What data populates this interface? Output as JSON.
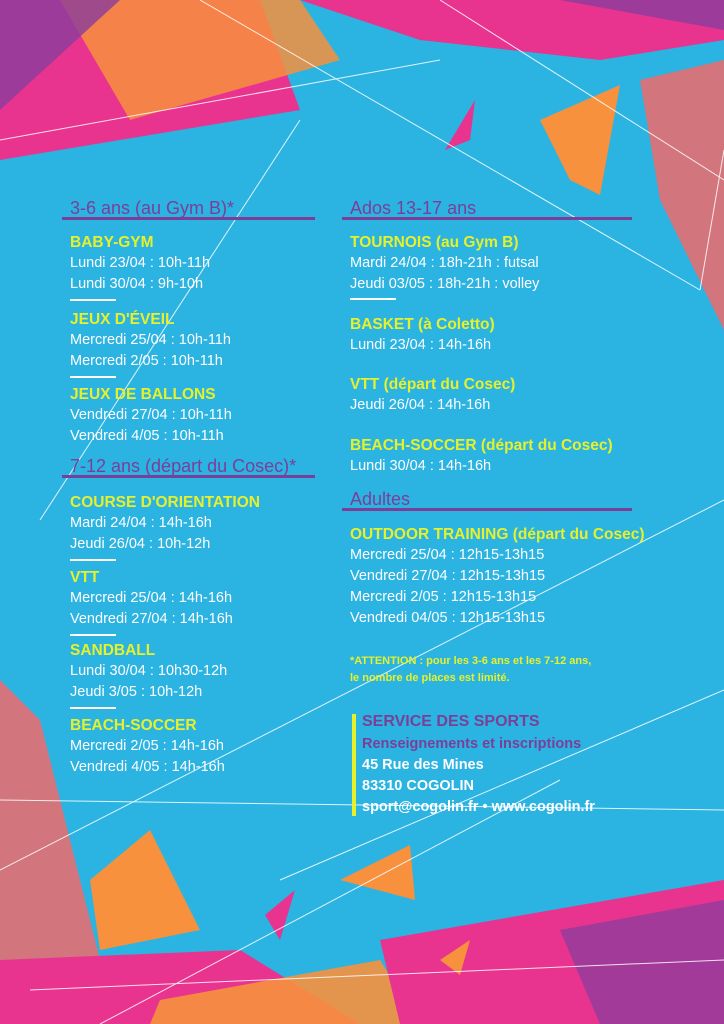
{
  "colors": {
    "background": "#2bb3e2",
    "heading": "#7b3f98",
    "activity": "#e6f12c",
    "text": "#ffffff",
    "pink": "#e8338f",
    "orange": "#f7913d"
  },
  "left": {
    "group1": {
      "title": "3-6 ans (au Gym B)*",
      "activities": [
        {
          "name": "BABY-GYM",
          "lines": [
            "Lundi 23/04 : 10h-11h",
            "Lundi 30/04 : 9h-10h"
          ]
        },
        {
          "name": "JEUX D'ÉVEIL",
          "lines": [
            "Mercredi 25/04 : 10h-11h",
            "Mercredi 2/05 : 10h-11h"
          ]
        },
        {
          "name": "JEUX DE BALLONS",
          "lines": [
            "Vendredi 27/04 : 10h-11h",
            "Vendredi 4/05 : 10h-11h"
          ]
        }
      ]
    },
    "group2": {
      "title": "7-12 ans (départ du Cosec)*",
      "activities": [
        {
          "name": "COURSE D'ORIENTATION",
          "lines": [
            "Mardi 24/04 : 14h-16h",
            "Jeudi 26/04 : 10h-12h"
          ]
        },
        {
          "name": "VTT",
          "lines": [
            "Mercredi 25/04 : 14h-16h",
            "Vendredi 27/04 : 14h-16h"
          ]
        },
        {
          "name": "SANDBALL",
          "lines": [
            "Lundi 30/04 : 10h30-12h",
            "Jeudi 3/05 : 10h-12h"
          ]
        },
        {
          "name": "BEACH-SOCCER",
          "lines": [
            "Mercredi 2/05 : 14h-16h",
            "Vendredi 4/05 : 14h-16h"
          ]
        }
      ]
    }
  },
  "right": {
    "group1": {
      "title": "Ados 13-17 ans",
      "activities": [
        {
          "name": "TOURNOIS  (au Gym B)",
          "lines": [
            "Mardi 24/04 : 18h-21h : futsal",
            "Jeudi 03/05 : 18h-21h : volley"
          ]
        },
        {
          "name": "BASKET (à Coletto)",
          "lines": [
            "Lundi 23/04 : 14h-16h"
          ]
        },
        {
          "name": "VTT (départ du Cosec)",
          "lines": [
            "Jeudi 26/04 : 14h-16h"
          ]
        },
        {
          "name": "BEACH-SOCCER (départ du Cosec)",
          "lines": [
            "Lundi 30/04 : 14h-16h"
          ]
        }
      ]
    },
    "group2": {
      "title": "Adultes",
      "activities": [
        {
          "name": "OUTDOOR TRAINING (départ du Cosec)",
          "lines": [
            "Mercredi 25/04 : 12h15-13h15",
            "Vendredi 27/04 : 12h15-13h15",
            "Mercredi 2/05 : 12h15-13h15",
            "Vendredi 04/05 : 12h15-13h15"
          ]
        }
      ]
    }
  },
  "notice": [
    "*ATTENTION : pour les 3-6 ans et les 7-12 ans,",
    "le nombre de places est limité."
  ],
  "contact": {
    "title": "SERVICE DES SPORTS",
    "subtitle": "Renseignements et inscriptions",
    "address": "45 Rue des Mines",
    "city": "83310 COGOLIN",
    "web": "sport@cogolin.fr • www.cogolin.fr"
  }
}
